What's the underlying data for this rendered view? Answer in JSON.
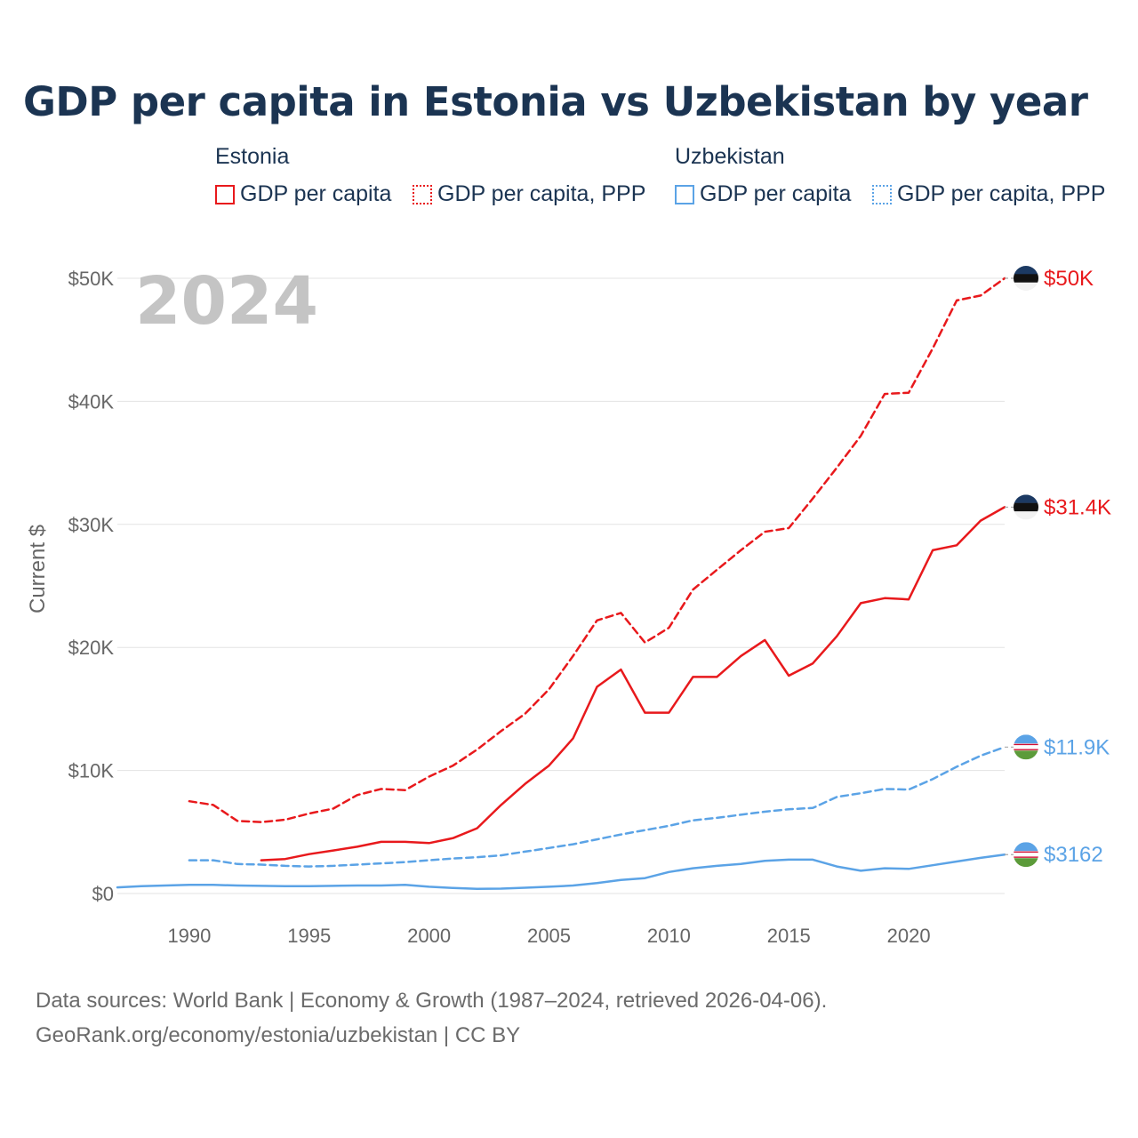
{
  "chart_data": {
    "type": "line",
    "title": "GDP per capita in Estonia vs Uzbekistan by year",
    "ylabel": "Current $",
    "xlabel": "",
    "year_label": "2024",
    "xlim": [
      1987,
      2024
    ],
    "ylim": [
      0,
      50000
    ],
    "x_ticks": [
      1990,
      1995,
      2000,
      2005,
      2010,
      2015,
      2020
    ],
    "y_ticks": [
      0,
      10000,
      20000,
      30000,
      40000,
      50000
    ],
    "y_tick_labels": [
      "$0",
      "$10K",
      "$20K",
      "$30K",
      "$40K",
      "$50K"
    ],
    "legend": {
      "groups": [
        {
          "name": "Estonia",
          "items": [
            "GDP per capita",
            "GDP per capita, PPP"
          ]
        },
        {
          "name": "Uzbekistan",
          "items": [
            "GDP per capita",
            "GDP per capita, PPP"
          ]
        }
      ]
    },
    "series": [
      {
        "name": "Estonia GDP per capita",
        "country": "Estonia",
        "style": "solid",
        "color": "#e8191c",
        "end_label": "$31.4K",
        "x": [
          1993,
          1994,
          1995,
          1996,
          1997,
          1998,
          1999,
          2000,
          2001,
          2002,
          2003,
          2004,
          2005,
          2006,
          2007,
          2008,
          2009,
          2010,
          2011,
          2012,
          2013,
          2014,
          2015,
          2016,
          2017,
          2018,
          2019,
          2020,
          2021,
          2022,
          2023,
          2024
        ],
        "values": [
          2700,
          2800,
          3200,
          3500,
          3800,
          4200,
          4200,
          4100,
          4500,
          5300,
          7200,
          8900,
          10400,
          12600,
          16800,
          18200,
          14700,
          14700,
          17600,
          17600,
          19300,
          20600,
          17700,
          18700,
          20900,
          23600,
          24000,
          23900,
          27900,
          28300,
          30300,
          31400
        ]
      },
      {
        "name": "Estonia GDP per capita, PPP",
        "country": "Estonia",
        "style": "dashed",
        "color": "#e8191c",
        "end_label": "$50K",
        "x": [
          1990,
          1991,
          1992,
          1993,
          1994,
          1995,
          1996,
          1997,
          1998,
          1999,
          2000,
          2001,
          2002,
          2003,
          2004,
          2005,
          2006,
          2007,
          2008,
          2009,
          2010,
          2011,
          2012,
          2013,
          2014,
          2015,
          2016,
          2017,
          2018,
          2019,
          2020,
          2021,
          2022,
          2023,
          2024
        ],
        "values": [
          7500,
          7200,
          5900,
          5800,
          6000,
          6500,
          6900,
          8000,
          8500,
          8400,
          9500,
          10400,
          11700,
          13200,
          14600,
          16600,
          19300,
          22200,
          22800,
          20400,
          21600,
          24700,
          26300,
          27900,
          29400,
          29700,
          32100,
          34600,
          37200,
          40600,
          40700,
          44300,
          48200,
          48600,
          50000
        ]
      },
      {
        "name": "Uzbekistan GDP per capita",
        "country": "Uzbekistan",
        "style": "solid",
        "color": "#5ba3e6",
        "end_label": "$3162",
        "x": [
          1987,
          1988,
          1989,
          1990,
          1991,
          1992,
          1993,
          1994,
          1995,
          1996,
          1997,
          1998,
          1999,
          2000,
          2001,
          2002,
          2003,
          2004,
          2005,
          2006,
          2007,
          2008,
          2009,
          2010,
          2011,
          2012,
          2013,
          2014,
          2015,
          2016,
          2017,
          2018,
          2019,
          2020,
          2021,
          2022,
          2023,
          2024
        ],
        "values": [
          500,
          600,
          650,
          700,
          700,
          650,
          620,
          600,
          600,
          620,
          650,
          650,
          700,
          550,
          450,
          380,
          400,
          470,
          550,
          650,
          850,
          1100,
          1250,
          1750,
          2050,
          2250,
          2400,
          2650,
          2750,
          2750,
          2200,
          1850,
          2050,
          2000,
          2300,
          2600,
          2900,
          3162
        ]
      },
      {
        "name": "Uzbekistan GDP per capita, PPP",
        "country": "Uzbekistan",
        "style": "dashed",
        "color": "#5ba3e6",
        "end_label": "$11.9K",
        "x": [
          1990,
          1991,
          1992,
          1993,
          1994,
          1995,
          1996,
          1997,
          1998,
          1999,
          2000,
          2001,
          2002,
          2003,
          2004,
          2005,
          2006,
          2007,
          2008,
          2009,
          2010,
          2011,
          2012,
          2013,
          2014,
          2015,
          2016,
          2017,
          2018,
          2019,
          2020,
          2021,
          2022,
          2023,
          2024
        ],
        "values": [
          2700,
          2700,
          2400,
          2350,
          2250,
          2200,
          2250,
          2350,
          2450,
          2550,
          2700,
          2850,
          2950,
          3100,
          3400,
          3700,
          4000,
          4400,
          4800,
          5150,
          5500,
          5950,
          6150,
          6400,
          6650,
          6850,
          6950,
          7850,
          8150,
          8500,
          8450,
          9300,
          10300,
          11200,
          11900
        ]
      }
    ]
  },
  "source": {
    "line1": "Data sources: World Bank | Economy & Growth (1987–2024, retrieved 2026-04-06).",
    "line2": "GeoRank.org/economy/estonia/uzbekistan | CC BY"
  }
}
